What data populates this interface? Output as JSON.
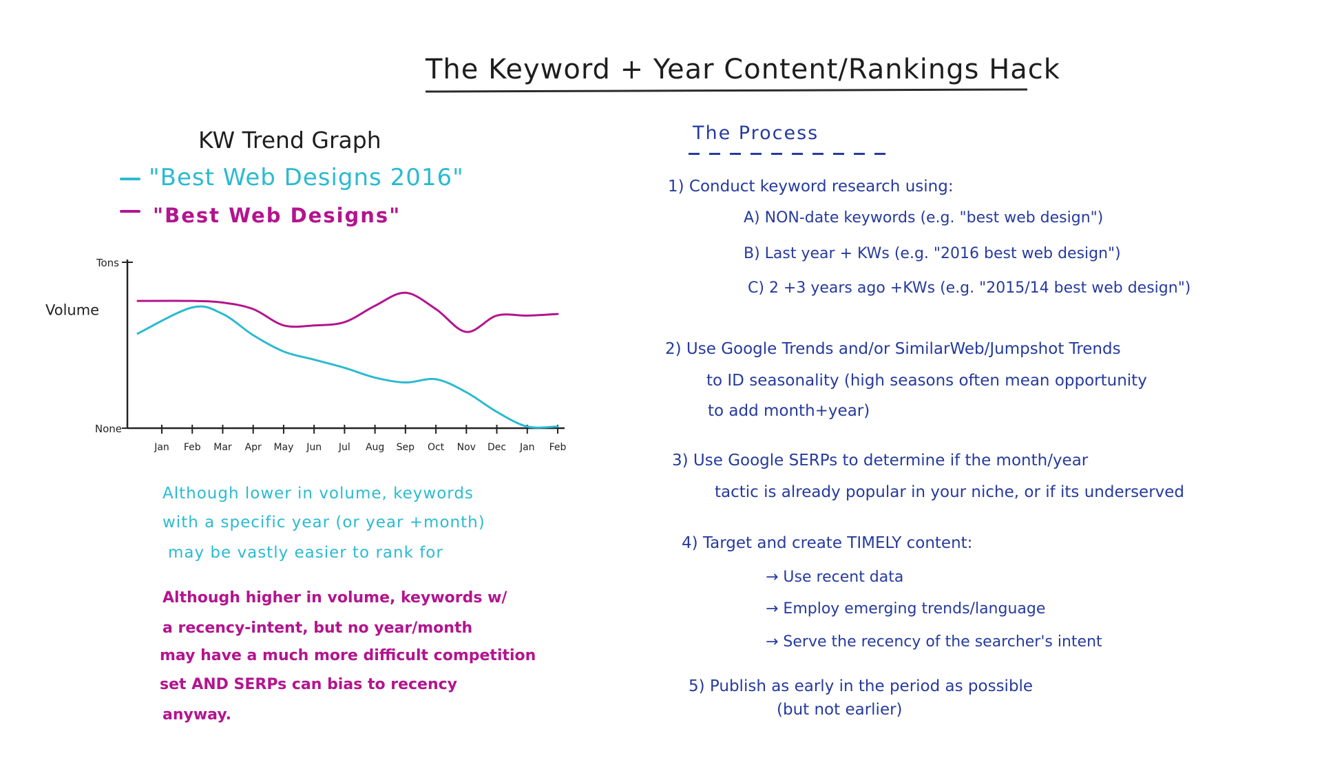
{
  "title": "The Keyword + Year Content/Rankings Hack",
  "graph": {
    "title": "KW Trend Graph",
    "legend": [
      {
        "label": "\"Best Web Designs 2016\"",
        "color": "#2bbad0"
      },
      {
        "label": "\"Best Web Designs\"",
        "color": "#b3148f"
      }
    ],
    "y_axis_label": "Volume",
    "y_ticks": [
      "Tons",
      "None"
    ]
  },
  "chart_data": {
    "type": "line",
    "categories": [
      "Jan",
      "Feb",
      "Mar",
      "Apr",
      "May",
      "Jun",
      "Jul",
      "Aug",
      "Sep",
      "Oct",
      "Nov",
      "Dec",
      "Jan",
      "Feb"
    ],
    "series": [
      {
        "name": "\"Best Web Designs 2016\"",
        "color": "#2bbad0",
        "values": [
          58,
          74,
          70,
          57,
          47,
          42,
          37,
          31,
          28,
          30,
          22,
          10,
          1,
          1
        ]
      },
      {
        "name": "\"Best Web Designs\"",
        "color": "#b3148f",
        "values": [
          78,
          78,
          77,
          73,
          63,
          63,
          65,
          75,
          83,
          73,
          59,
          69,
          69,
          70
        ]
      }
    ],
    "title": "KW Trend Graph",
    "xlabel": "",
    "ylabel": "Volume",
    "ytick_labels": [
      "None",
      "Tons"
    ],
    "ylim": [
      0,
      100
    ],
    "grid": false,
    "legend_position": "top-left"
  },
  "notes": {
    "teal": [
      "Although lower in volume, keywords",
      "with a specific year (or year +month)",
      "may be vastly easier to rank for"
    ],
    "pink": [
      "Although higher in volume, keywords w/",
      "a recency-intent, but no year/month",
      "may have a much more difficult competition",
      "set AND SERPs can bias to recency",
      "anyway."
    ]
  },
  "process": {
    "title": "The Process",
    "step1": {
      "text": "1) Conduct keyword research using:",
      "subs": [
        "A) NON-date keywords (e.g. \"best web design\")",
        "B) Last year + KWs (e.g. \"2016 best web design\")",
        "C) 2 +3 years ago +KWs (e.g. \"2015/14 best web design\")"
      ]
    },
    "step2": [
      "2) Use Google Trends and/or SimilarWeb/Jumpshot Trends",
      "to ID seasonality (high seasons often mean opportunity",
      "to add month+year)"
    ],
    "step3": [
      "3) Use Google SERPs to determine if the month/year",
      "tactic is already popular in your niche, or if its underserved"
    ],
    "step4": {
      "text": "4) Target and create TIMELY content:",
      "subs": [
        "→ Use recent data",
        "→ Employ emerging trends/language",
        "→ Serve the recency of the searcher's intent"
      ]
    },
    "step5": [
      "5) Publish as early in the period as possible",
      "(but not earlier)"
    ]
  }
}
